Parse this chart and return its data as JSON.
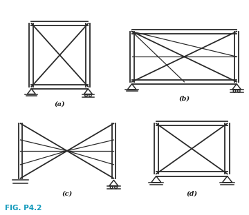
{
  "bg_color": "#ffffff",
  "line_color": "#2a2a2a",
  "lw": 1.3,
  "lw_thin": 0.9,
  "lw_support": 1.1,
  "label_color": "#1a1a1a",
  "fig_label_color": "#1199bb",
  "labels": [
    "(a)",
    "(b)",
    "(c)",
    "(d)"
  ],
  "fig_label": "FIG. P4.2"
}
